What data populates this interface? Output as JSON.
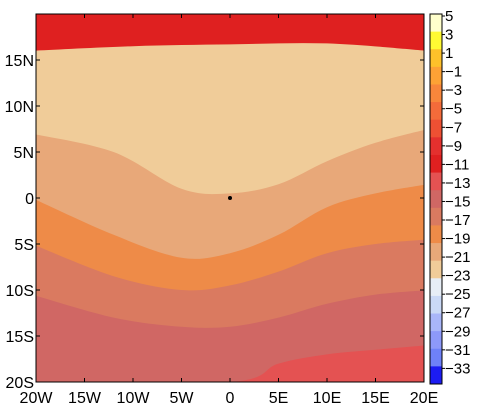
{
  "chart_data": {
    "type": "heatmap",
    "title": "",
    "xlabel": "",
    "ylabel": "",
    "xlim": [
      -20,
      20
    ],
    "ylim": [
      -20,
      20
    ],
    "x_ticks": [
      {
        "value": -20,
        "label": "20W"
      },
      {
        "value": -15,
        "label": "15W"
      },
      {
        "value": -10,
        "label": "10W"
      },
      {
        "value": -5,
        "label": "5W"
      },
      {
        "value": 0,
        "label": "0"
      },
      {
        "value": 5,
        "label": "5E"
      },
      {
        "value": 10,
        "label": "10E"
      },
      {
        "value": 15,
        "label": "15E"
      },
      {
        "value": 20,
        "label": "20E"
      }
    ],
    "y_ticks": [
      {
        "value": 15,
        "label": "15N"
      },
      {
        "value": 10,
        "label": "10N"
      },
      {
        "value": 5,
        "label": "5N"
      },
      {
        "value": 0,
        "label": "0"
      },
      {
        "value": -5,
        "label": "5S"
      },
      {
        "value": -10,
        "label": "10S"
      },
      {
        "value": -15,
        "label": "15S"
      },
      {
        "value": -20,
        "label": "20S"
      }
    ],
    "colorbar": {
      "labels": [
        "5",
        "3",
        "1",
        "−1",
        "−3",
        "−5",
        "−7",
        "−9",
        "−11",
        "−13",
        "−15",
        "−17",
        "−19",
        "−21",
        "−23",
        "−25",
        "−27",
        "−29",
        "−31",
        "−33"
      ],
      "colors": [
        "#ffffcc",
        "#fffa33",
        "#fdc12a",
        "#fda235",
        "#f8863b",
        "#f46b3a",
        "#ee5033",
        "#e4302e",
        "#df2020",
        "#e45252",
        "#d06764",
        "#da7a60",
        "#ee8b48",
        "#e8a879",
        "#f0cc99",
        "#e7eef6",
        "#cad9f6",
        "#a9b6f9",
        "#8d99f9",
        "#6e81f8",
        "#1c1cf2"
      ]
    },
    "contour_levels": [
      -21,
      -19,
      -17,
      -15,
      -13,
      -11,
      -9
    ],
    "contour_bands": [
      {
        "range": [
          -23,
          -21
        ],
        "color": "#f0cc99",
        "boundary_upper": [
          [
            -20,
            16
          ],
          [
            -10,
            16.5
          ],
          [
            0,
            16.7
          ],
          [
            10,
            16.8
          ],
          [
            20,
            16
          ]
        ]
      },
      {
        "range": [
          -21,
          -19
        ],
        "color": "#e8a879",
        "boundary_upper": [
          [
            -20,
            7
          ],
          [
            -12,
            5
          ],
          [
            -5,
            1
          ],
          [
            0,
            0.5
          ],
          [
            5,
            1.5
          ],
          [
            10,
            4
          ],
          [
            15,
            6
          ],
          [
            20,
            7.5
          ]
        ]
      },
      {
        "range": [
          -19,
          -17
        ],
        "color": "#ee8b48",
        "boundary_upper": [
          [
            -20,
            0
          ],
          [
            -12,
            -4
          ],
          [
            -5,
            -6.5
          ],
          [
            0,
            -6
          ],
          [
            5,
            -4
          ],
          [
            10,
            -1
          ],
          [
            15,
            0.5
          ],
          [
            20,
            1.5
          ]
        ]
      },
      {
        "range": [
          -17,
          -15
        ],
        "color": "#da7a60",
        "boundary_upper": [
          [
            -20,
            -5
          ],
          [
            -12,
            -8.5
          ],
          [
            -5,
            -10
          ],
          [
            0,
            -9.5
          ],
          [
            5,
            -8
          ],
          [
            10,
            -6
          ],
          [
            15,
            -5
          ],
          [
            20,
            -4.5
          ]
        ]
      },
      {
        "range": [
          -15,
          -13
        ],
        "color": "#d06764",
        "boundary_upper": [
          [
            -20,
            -10.5
          ],
          [
            -12,
            -13
          ],
          [
            -5,
            -14
          ],
          [
            0,
            -14
          ],
          [
            5,
            -13
          ],
          [
            10,
            -11.5
          ],
          [
            15,
            -10.5
          ],
          [
            20,
            -10
          ]
        ]
      },
      {
        "range": [
          -13,
          -11
        ],
        "color": "#e45252",
        "boundary_upper": [
          [
            -20,
            -20
          ],
          [
            0,
            -20
          ],
          [
            5,
            -18
          ],
          [
            10,
            -17
          ],
          [
            15,
            -16.5
          ],
          [
            20,
            -16
          ]
        ]
      },
      {
        "range": [
          -11,
          -9
        ],
        "color": "#df2020"
      }
    ],
    "marker": {
      "x": 0,
      "y": 0,
      "label": ""
    },
    "grid": false,
    "legend": "colorbar-right"
  }
}
